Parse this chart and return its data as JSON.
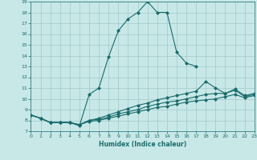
{
  "xlabel": "Humidex (Indice chaleur)",
  "background_color": "#c8e8e8",
  "grid_color": "#a0c8c8",
  "line_color": "#1a6b6b",
  "xlim": [
    0,
    23
  ],
  "ylim": [
    7,
    19
  ],
  "xticks": [
    0,
    1,
    2,
    3,
    4,
    5,
    6,
    7,
    8,
    9,
    10,
    11,
    12,
    13,
    14,
    15,
    16,
    17,
    18,
    19,
    20,
    21,
    22,
    23
  ],
  "yticks": [
    7,
    8,
    9,
    10,
    11,
    12,
    13,
    14,
    15,
    16,
    17,
    18,
    19
  ],
  "series": [
    {
      "x": [
        0,
        1,
        2,
        3,
        4,
        5,
        6,
        7,
        8,
        9,
        10,
        11,
        12,
        13,
        14,
        15,
        16,
        17
      ],
      "y": [
        8.5,
        8.2,
        7.8,
        7.8,
        7.8,
        7.5,
        10.4,
        11.0,
        13.9,
        16.3,
        17.4,
        18.0,
        19.0,
        18.0,
        18.0,
        14.3,
        13.3,
        13.0
      ]
    },
    {
      "x": [
        0,
        1,
        2,
        3,
        4,
        5,
        6,
        7,
        8,
        9,
        10,
        11,
        12,
        13,
        14,
        15,
        16,
        17,
        18,
        19,
        20,
        21,
        22,
        23
      ],
      "y": [
        8.5,
        8.2,
        7.8,
        7.8,
        7.8,
        7.6,
        8.0,
        8.2,
        8.5,
        8.8,
        9.1,
        9.4,
        9.6,
        9.9,
        10.1,
        10.3,
        10.5,
        10.7,
        11.6,
        11.0,
        10.5,
        10.9,
        10.3,
        10.5
      ]
    },
    {
      "x": [
        0,
        1,
        2,
        3,
        4,
        5,
        6,
        7,
        8,
        9,
        10,
        11,
        12,
        13,
        14,
        15,
        16,
        17,
        18,
        19,
        20,
        21,
        22,
        23
      ],
      "y": [
        8.5,
        8.2,
        7.8,
        7.8,
        7.8,
        7.6,
        8.0,
        8.1,
        8.3,
        8.6,
        8.8,
        9.0,
        9.3,
        9.5,
        9.7,
        9.8,
        10.0,
        10.2,
        10.4,
        10.5,
        10.5,
        10.8,
        10.2,
        10.4
      ]
    },
    {
      "x": [
        0,
        1,
        2,
        3,
        4,
        5,
        6,
        7,
        8,
        9,
        10,
        11,
        12,
        13,
        14,
        15,
        16,
        17,
        18,
        19,
        20,
        21,
        22,
        23
      ],
      "y": [
        8.5,
        8.2,
        7.8,
        7.8,
        7.8,
        7.6,
        7.9,
        8.0,
        8.2,
        8.4,
        8.6,
        8.8,
        9.0,
        9.2,
        9.3,
        9.5,
        9.7,
        9.8,
        9.9,
        10.0,
        10.2,
        10.4,
        10.1,
        10.3
      ]
    }
  ]
}
